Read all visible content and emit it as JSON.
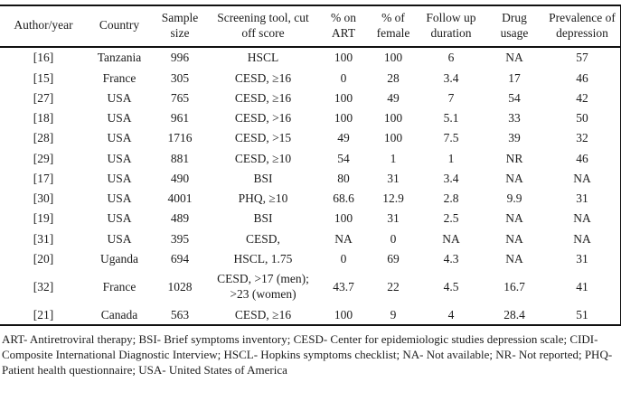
{
  "table": {
    "columns": [
      {
        "label": "Author/year"
      },
      {
        "label": "Country"
      },
      {
        "label": "Sample size"
      },
      {
        "label": "Screening tool, cut off score"
      },
      {
        "label": "% on ART"
      },
      {
        "label": "% of female"
      },
      {
        "label": "Follow up duration"
      },
      {
        "label": "Drug usage"
      },
      {
        "label": "Prevalence of depression"
      }
    ],
    "rows": [
      [
        "[16]",
        "Tanzania",
        "996",
        "HSCL",
        "100",
        "100",
        "6",
        "NA",
        "57"
      ],
      [
        "[15]",
        "France",
        "305",
        "CESD, ≥16",
        "0",
        "28",
        "3.4",
        "17",
        "46"
      ],
      [
        "[27]",
        "USA",
        "765",
        "CESD, ≥16",
        "100",
        "49",
        "7",
        "54",
        "42"
      ],
      [
        "[18]",
        "USA",
        "961",
        "CESD, >16",
        "100",
        "100",
        "5.1",
        "33",
        "50"
      ],
      [
        "[28]",
        "USA",
        "1716",
        "CESD, >15",
        "49",
        "100",
        "7.5",
        "39",
        "32"
      ],
      [
        "[29]",
        "USA",
        "881",
        "CESD, ≥10",
        "54",
        "1",
        "1",
        "NR",
        "46"
      ],
      [
        "[17]",
        "USA",
        "490",
        "BSI",
        "80",
        "31",
        "3.4",
        "NA",
        "NA"
      ],
      [
        "[30]",
        "USA",
        "4001",
        "PHQ, ≥10",
        "68.6",
        "12.9",
        "2.8",
        "9.9",
        "31"
      ],
      [
        "[19]",
        "USA",
        "489",
        "BSI",
        "100",
        "31",
        "2.5",
        "NA",
        "NA"
      ],
      [
        "[31]",
        "USA",
        "395",
        "CESD,",
        "NA",
        "0",
        "NA",
        "NA",
        "NA"
      ],
      [
        "[20]",
        "Uganda",
        "694",
        "HSCL, 1.75",
        "0",
        "69",
        "4.3",
        "NA",
        "31"
      ],
      [
        "[32]",
        "France",
        "1028",
        "CESD, >17 (men); >23 (women)",
        "43.7",
        "22",
        "4.5",
        "16.7",
        "41"
      ],
      [
        "[21]",
        "Canada",
        "563",
        "CESD, ≥16",
        "100",
        "9",
        "4",
        "28.4",
        "51"
      ]
    ],
    "footnote": "ART- Antiretroviral therapy; BSI- Brief symptoms inventory; CESD- Center for epidemiologic studies depression scale; CIDI- Composite International Diagnostic Interview; HSCL- Hopkins symptoms checklist; NA- Not available; NR- Not reported; PHQ- Patient health questionnaire; USA- United States of America"
  }
}
